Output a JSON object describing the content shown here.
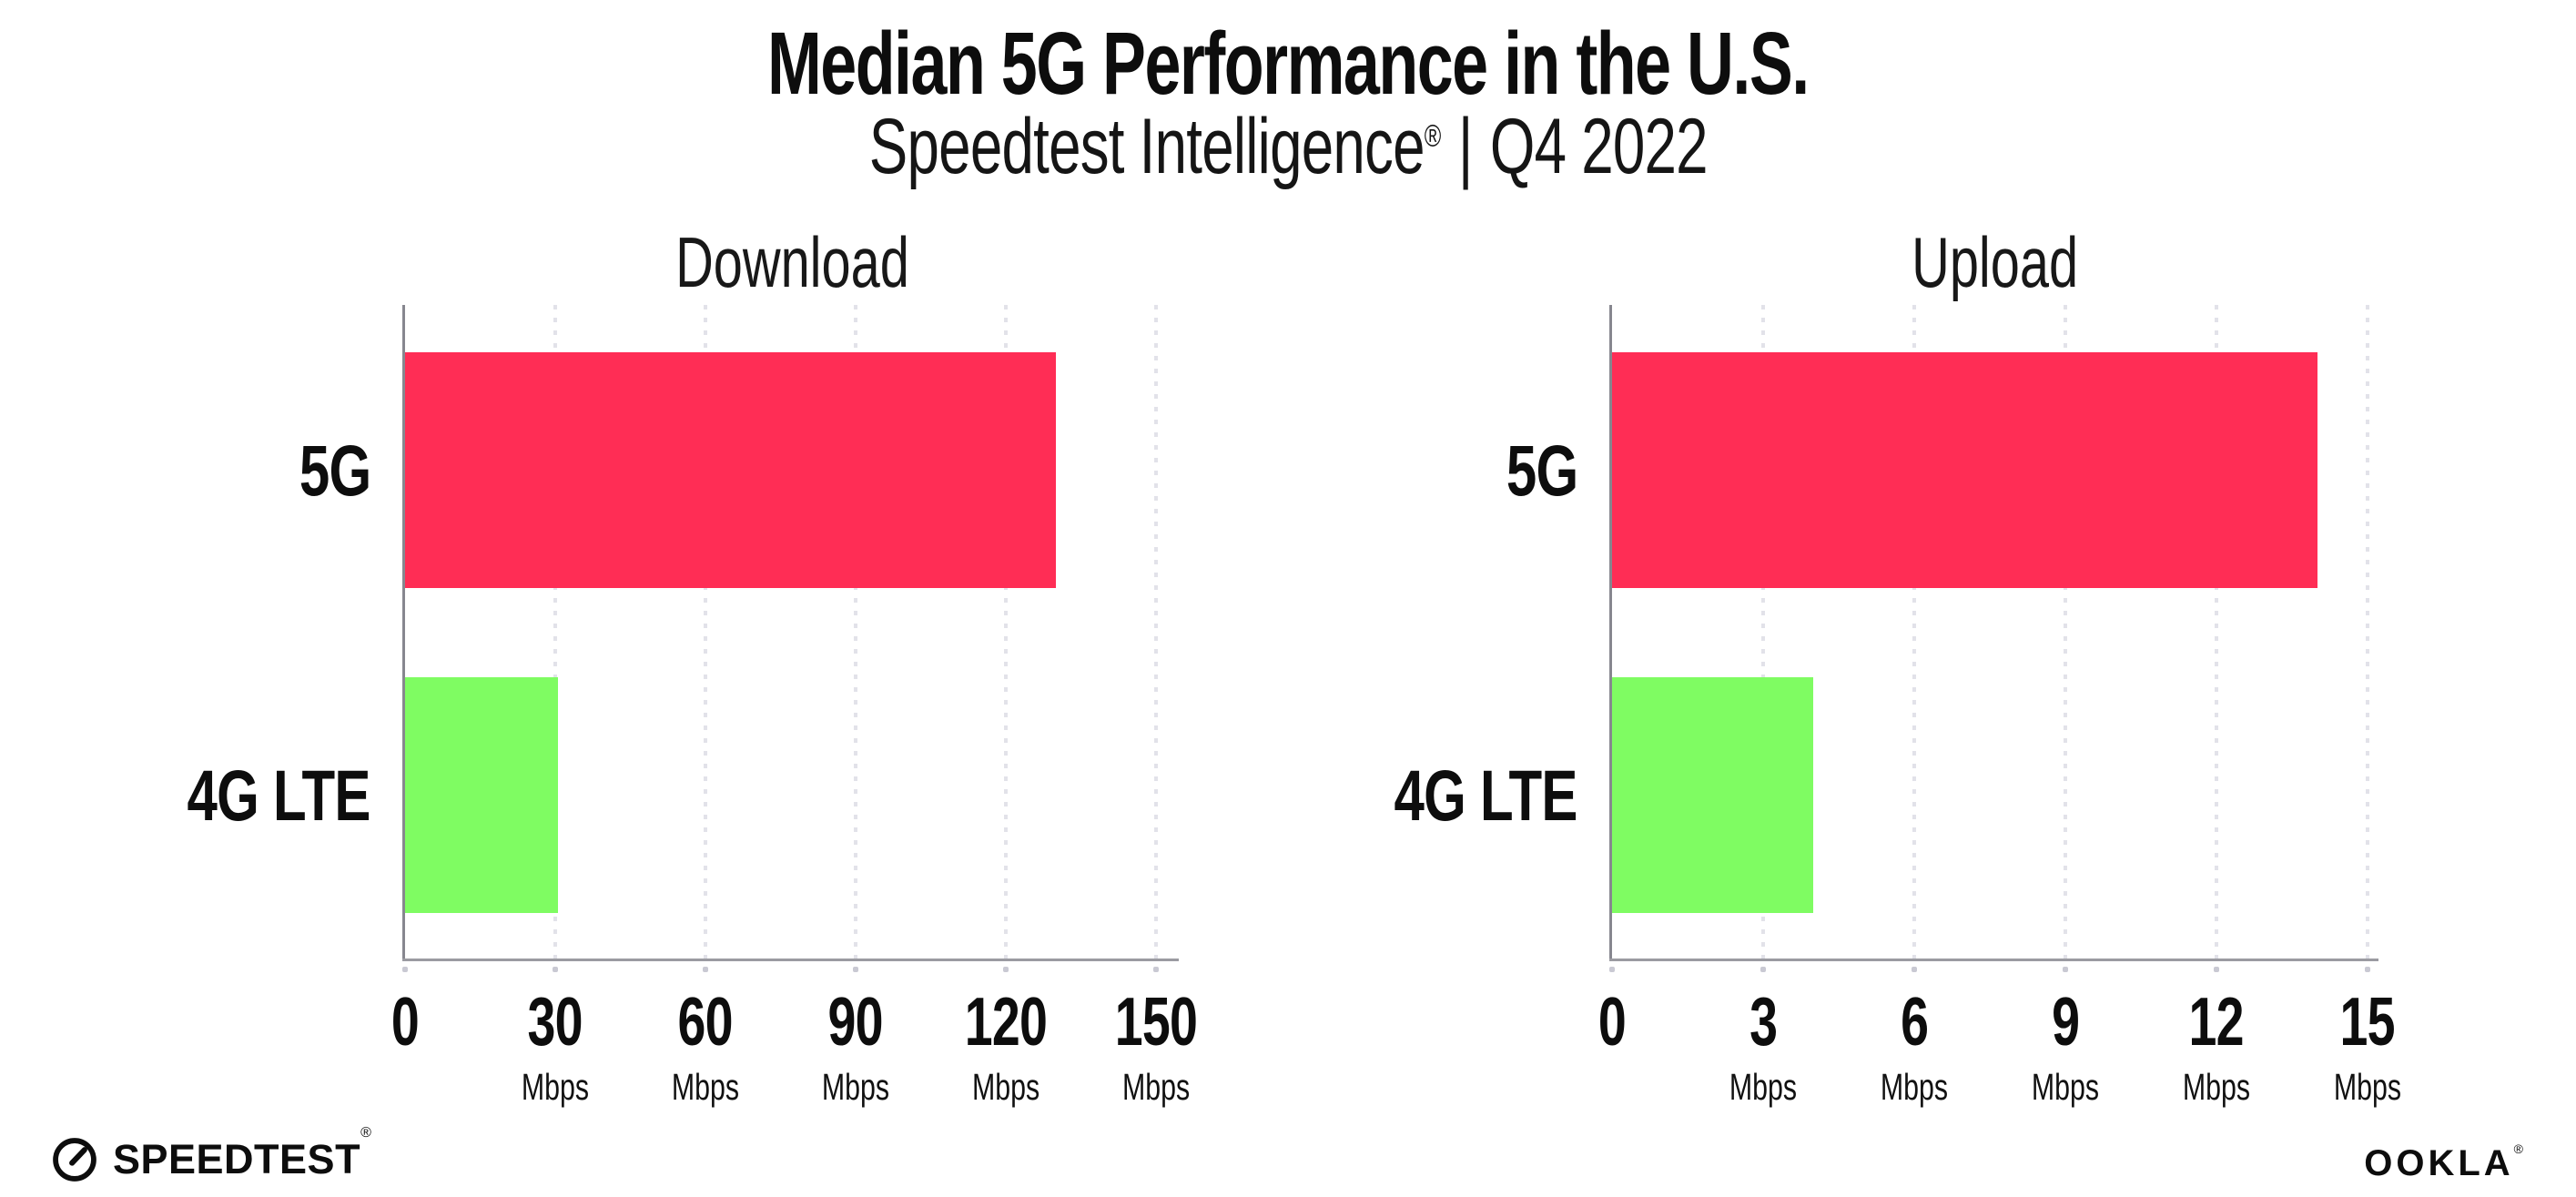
{
  "header": {
    "title": "Median 5G Performance in the U.S.",
    "subtitle_brand": "Speedtest Intelligence",
    "subtitle_mark": "®",
    "subtitle_separator": "|",
    "subtitle_period": "Q4 2022"
  },
  "chart_data": [
    {
      "type": "bar",
      "orientation": "horizontal",
      "title": "Download",
      "categories": [
        "5G",
        "4G LTE"
      ],
      "values": [
        130,
        30.5
      ],
      "unit": "Mbps",
      "xlabel": "",
      "ylabel": "",
      "xlim": [
        0,
        150
      ],
      "xticks": [
        0,
        30,
        60,
        90,
        120,
        150
      ],
      "bar_colors": [
        "#ff2d55",
        "#7ffc62"
      ],
      "grid": "dotted-vertical-gridlines",
      "legend": "none"
    },
    {
      "type": "bar",
      "orientation": "horizontal",
      "title": "Upload",
      "categories": [
        "5G",
        "4G LTE"
      ],
      "values": [
        14,
        4
      ],
      "unit": "Mbps",
      "xlabel": "",
      "ylabel": "",
      "xlim": [
        0,
        15
      ],
      "xticks": [
        0,
        3,
        6,
        9,
        12,
        15
      ],
      "bar_colors": [
        "#ff2d55",
        "#7ffc62"
      ],
      "grid": "dotted-vertical-gridlines",
      "legend": "none"
    }
  ],
  "colors": {
    "bar_5g": "#ff2d55",
    "bar_4g_lte": "#7ffc62",
    "axis_line": "#97979d",
    "gridline": "#e2e2e9",
    "text": "#0d0d0d"
  },
  "footer": {
    "speedtest_label": "SPEEDTEST",
    "speedtest_mark": "®",
    "ookla_label": "OOKLA",
    "ookla_mark": "®"
  }
}
